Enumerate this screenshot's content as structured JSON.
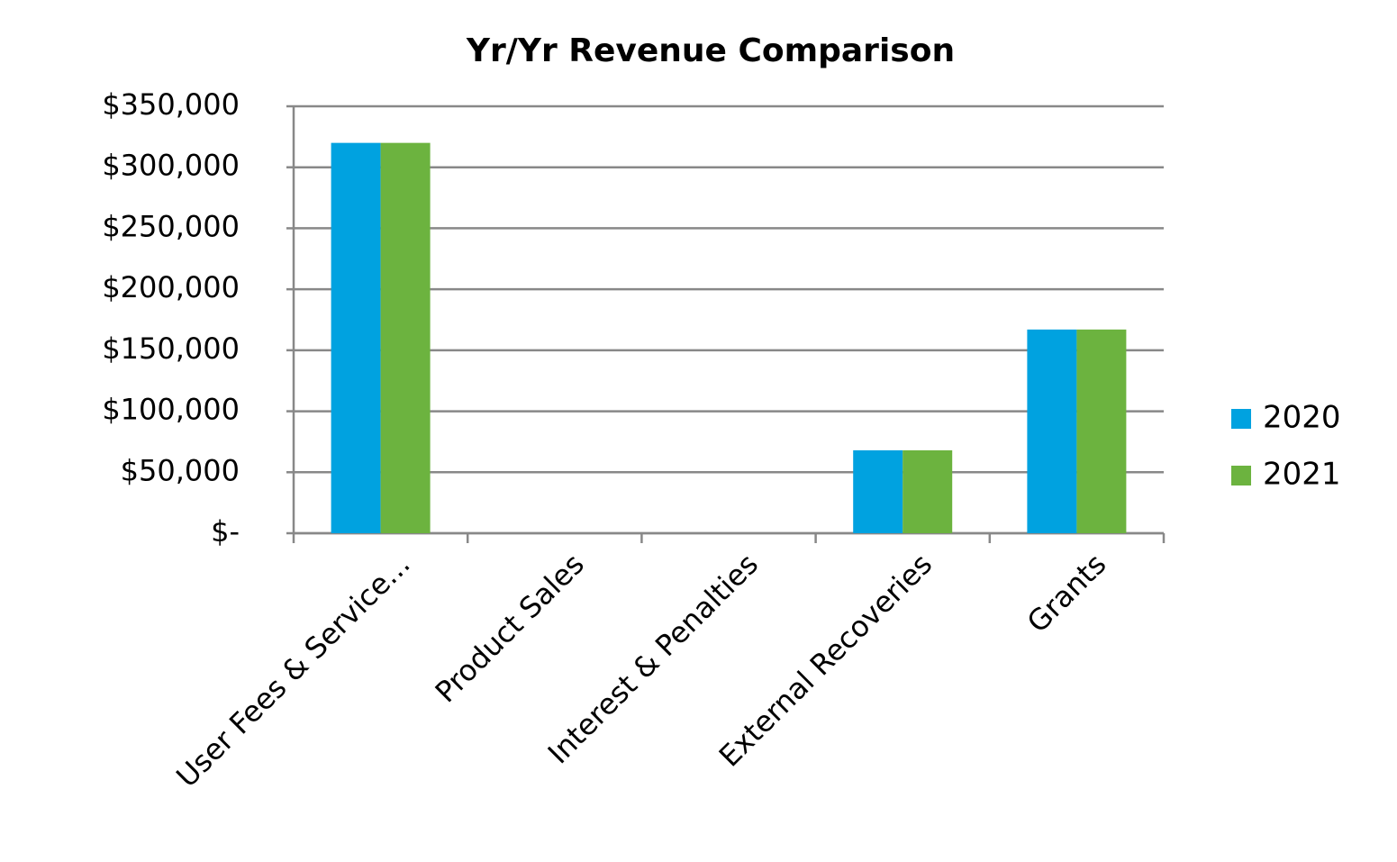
{
  "chart_data": {
    "type": "bar",
    "title": "Yr/Yr Revenue Comparison",
    "categories": [
      "User Fees & Service...",
      "Product Sales",
      "Interest & Penalties",
      "External Recoveries",
      "Grants"
    ],
    "series": [
      {
        "name": "2020",
        "color": "#00a2e0",
        "values": [
          320000,
          0,
          0,
          68000,
          167000
        ]
      },
      {
        "name": "2021",
        "color": "#6cb33f",
        "values": [
          320000,
          0,
          0,
          68000,
          167000
        ]
      }
    ],
    "ylim": [
      0,
      350000
    ],
    "yticks": [
      {
        "value": 0,
        "label": "$-"
      },
      {
        "value": 50000,
        "label": "$50,000"
      },
      {
        "value": 100000,
        "label": "$100,000"
      },
      {
        "value": 150000,
        "label": "$150,000"
      },
      {
        "value": 200000,
        "label": "$200,000"
      },
      {
        "value": 250000,
        "label": "$250,000"
      },
      {
        "value": 300000,
        "label": "$300,000"
      },
      {
        "value": 350000,
        "label": "$350,000"
      }
    ],
    "grid": true,
    "legend": "right"
  }
}
